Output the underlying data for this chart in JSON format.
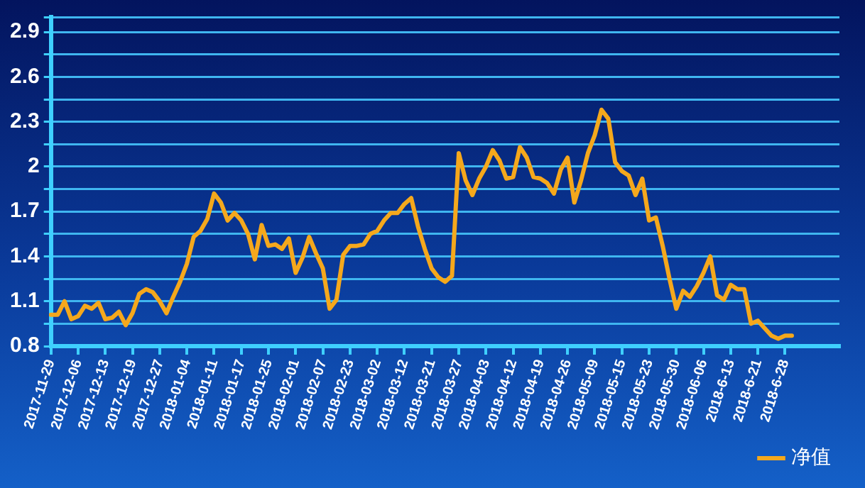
{
  "chart_data": {
    "type": "line",
    "categories": [
      "2017-11-29",
      null,
      null,
      null,
      "2017-12-06",
      null,
      null,
      null,
      "2017-12-13",
      null,
      null,
      null,
      "2017-12-19",
      null,
      null,
      null,
      "2017-12-27",
      null,
      null,
      null,
      "2018-01-04",
      null,
      null,
      null,
      "2018-01-11",
      null,
      null,
      null,
      "2018-01-17",
      null,
      null,
      null,
      "2018-01-25",
      null,
      null,
      null,
      "2018-02-01",
      null,
      null,
      null,
      "2018-02-07",
      null,
      null,
      null,
      "2018-02-23",
      null,
      null,
      null,
      "2018-03-02",
      null,
      null,
      null,
      "2018-03-12",
      null,
      null,
      null,
      "2018-03-21",
      null,
      null,
      null,
      "2018-03-27",
      null,
      null,
      null,
      "2018-04-03",
      null,
      null,
      null,
      "2018-04-12",
      null,
      null,
      null,
      "2018-04-19",
      null,
      null,
      null,
      "2018-04-26",
      null,
      null,
      null,
      "2018-05-09",
      null,
      null,
      null,
      "2018-05-15",
      null,
      null,
      null,
      "2018-05-23",
      null,
      null,
      null,
      "2018-05-30",
      null,
      null,
      null,
      "2018-06-06",
      null,
      null,
      null,
      "2018-6-13",
      null,
      null,
      null,
      "2018-6-21",
      null,
      null,
      null,
      "2018-6-28",
      null,
      null,
      null,
      null,
      null,
      null,
      null,
      null
    ],
    "series": [
      {
        "name": "净值",
        "color": "#f5a81c",
        "values": [
          1.01,
          1.01,
          1.1,
          0.98,
          1.0,
          1.07,
          1.05,
          1.09,
          0.98,
          0.99,
          1.03,
          0.94,
          1.02,
          1.15,
          1.18,
          1.16,
          1.1,
          1.02,
          1.13,
          1.23,
          1.35,
          1.53,
          1.57,
          1.65,
          1.82,
          1.76,
          1.64,
          1.69,
          1.64,
          1.55,
          1.38,
          1.61,
          1.47,
          1.48,
          1.45,
          1.52,
          1.29,
          1.39,
          1.53,
          1.42,
          1.32,
          1.05,
          1.11,
          1.41,
          1.47,
          1.47,
          1.48,
          1.55,
          1.57,
          1.64,
          1.69,
          1.69,
          1.75,
          1.79,
          1.6,
          1.45,
          1.32,
          1.26,
          1.23,
          1.27,
          2.09,
          1.91,
          1.81,
          1.92,
          2.0,
          2.11,
          2.04,
          1.92,
          1.93,
          2.13,
          2.06,
          1.93,
          1.92,
          1.89,
          1.82,
          1.98,
          2.06,
          1.76,
          1.91,
          2.09,
          2.21,
          2.38,
          2.32,
          2.03,
          1.97,
          1.94,
          1.81,
          1.92,
          1.64,
          1.66,
          1.47,
          1.25,
          1.05,
          1.17,
          1.13,
          1.2,
          1.29,
          1.4,
          1.14,
          1.11,
          1.21,
          1.18,
          1.18,
          0.95,
          0.97,
          0.92,
          0.87,
          0.85,
          0.87,
          0.87,
          null,
          null,
          null,
          null,
          null,
          null,
          null
        ]
      }
    ],
    "ylim": [
      0.8,
      3.0
    ],
    "yticks": [
      0.8,
      {
        "value": 0.95,
        "label": null
      },
      1.1,
      {
        "value": 1.25,
        "label": null
      },
      1.4,
      {
        "value": 1.55,
        "label": null
      },
      1.7,
      {
        "value": 1.85,
        "label": null
      },
      2,
      {
        "value": 2.15,
        "label": null
      },
      2.3,
      {
        "value": 2.45,
        "label": null
      },
      2.6,
      {
        "value": 2.75,
        "label": null
      },
      2.9,
      {
        "value": 3.0,
        "label": null
      }
    ],
    "grid": "y",
    "legend": "bottom right",
    "marker": "none",
    "line_style": "solid"
  }
}
